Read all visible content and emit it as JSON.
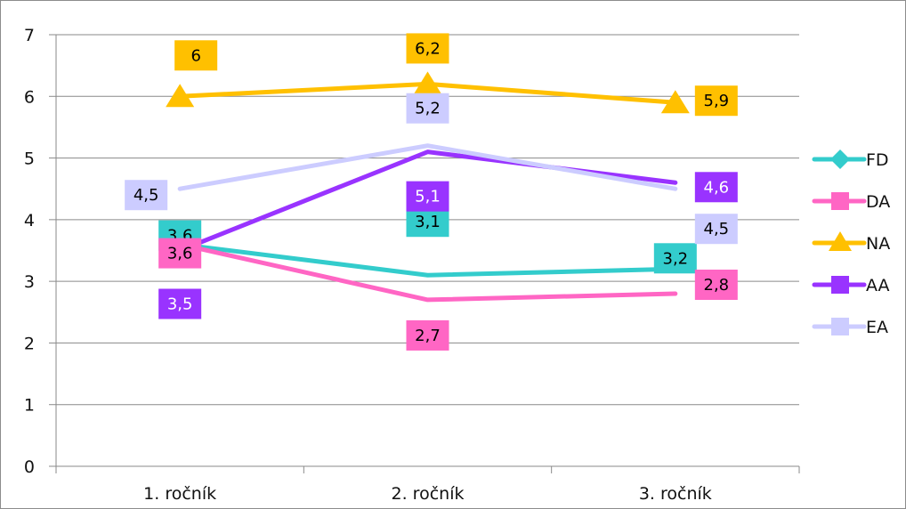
{
  "chart_data": {
    "type": "line",
    "categories": [
      "1. ročník",
      "2. ročník",
      "3. ročník"
    ],
    "ylim": [
      0,
      7
    ],
    "yticks": [
      0,
      1,
      2,
      3,
      4,
      5,
      6,
      7
    ],
    "grid": true,
    "legend_position": "right",
    "series": [
      {
        "name": "FD",
        "color": "#33CCCC",
        "marker": "diamond",
        "values": [
          3.6,
          3.1,
          3.2
        ],
        "labels": [
          "3,6",
          "3,1",
          "3,2"
        ],
        "label_text_color": "#000000"
      },
      {
        "name": "DA",
        "color": "#FF66C4",
        "marker": "square",
        "values": [
          3.6,
          2.7,
          2.8
        ],
        "labels": [
          "3,6",
          "2,7",
          "2,8"
        ],
        "label_text_color": "#000000"
      },
      {
        "name": "NA",
        "color": "#FFC000",
        "marker": "triangle",
        "values": [
          6,
          6.2,
          5.9
        ],
        "labels": [
          "6",
          "6,2",
          "5,9"
        ],
        "label_text_color": "#000000"
      },
      {
        "name": "AA",
        "color": "#9933FF",
        "marker": "square",
        "values": [
          3.5,
          5.1,
          4.6
        ],
        "labels": [
          "3,5",
          "5,1",
          "4,6"
        ],
        "label_text_color": "#FFFFFF"
      },
      {
        "name": "EA",
        "color": "#CCCCFF",
        "marker": "square",
        "values": [
          4.5,
          5.2,
          4.5
        ],
        "labels": [
          "4,5",
          "5,2",
          "4,5"
        ],
        "label_text_color": "#000000"
      }
    ]
  }
}
